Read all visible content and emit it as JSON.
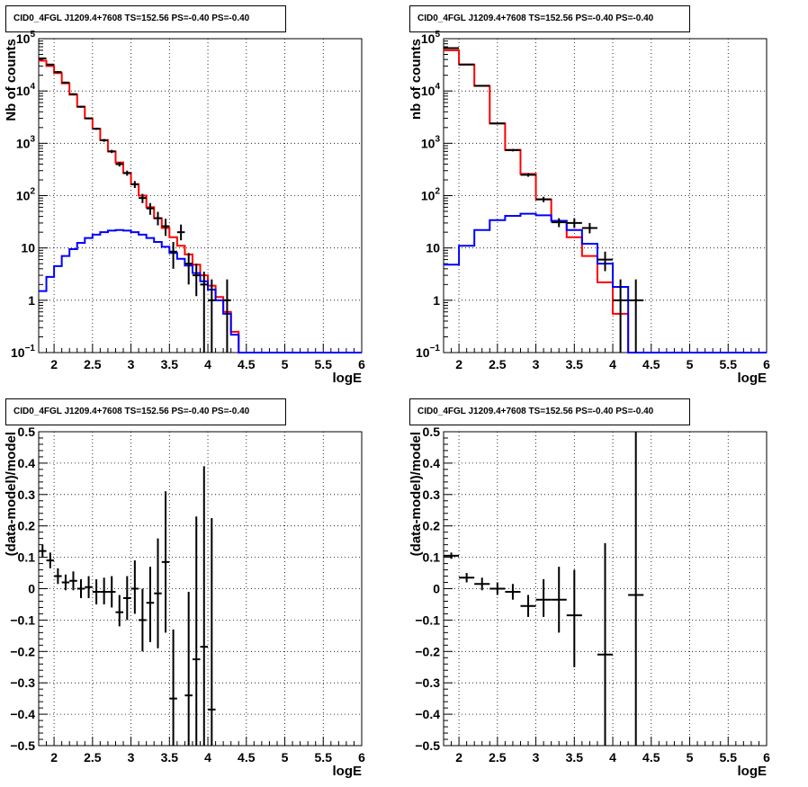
{
  "chart_data": [
    {
      "type": "histogram",
      "title": "CID0_4FGL J1209.4+7608 TS=152.56 PS=-0.40 PS=-0.40",
      "xlabel": "logE",
      "ylabel": "Nb of counts",
      "xlim": [
        1.8,
        6.0
      ],
      "ylim": [
        0.1,
        100000
      ],
      "yscale": "log",
      "xticks": [
        "2",
        "2.5",
        "3",
        "3.5",
        "4",
        "4.5",
        "5",
        "5.5",
        "6"
      ],
      "yticks": [
        {
          "v": 0.1,
          "label": "10",
          "sup": "−1"
        },
        {
          "v": 1,
          "label": "1",
          "sup": ""
        },
        {
          "v": 10,
          "label": "10",
          "sup": ""
        },
        {
          "v": 100,
          "label": "10",
          "sup": "2"
        },
        {
          "v": 1000,
          "label": "10",
          "sup": "3"
        },
        {
          "v": 10000,
          "label": "10",
          "sup": "4"
        },
        {
          "v": 100000,
          "label": "10",
          "sup": "5"
        }
      ],
      "grid": true,
      "x_edges": [
        1.8,
        1.9,
        2.0,
        2.1,
        2.2,
        2.3,
        2.4,
        2.5,
        2.6,
        2.7,
        2.8,
        2.9,
        3.0,
        3.1,
        3.2,
        3.3,
        3.4,
        3.5,
        3.6,
        3.7,
        3.8,
        3.9,
        4.0,
        4.1,
        4.2,
        4.3,
        4.4,
        4.5,
        4.6,
        4.7,
        4.8,
        4.9,
        5.0,
        5.1,
        5.2,
        5.3,
        5.4,
        5.5,
        5.6,
        5.7,
        5.8,
        5.9,
        6.0
      ],
      "series": [
        {
          "color": "#ff0000",
          "values": [
            38000,
            30000,
            22000,
            14000,
            8500,
            5000,
            3000,
            1900,
            1150,
            700,
            430,
            270,
            165,
            100,
            60,
            37,
            24,
            16,
            11,
            7.5,
            4.8,
            3.0,
            1.9,
            1.15,
            0.6,
            0.25,
            0.1,
            0.1,
            0.1,
            0.1,
            0.1,
            0.1,
            0.1,
            0.1,
            0.1,
            0.1,
            0.1,
            0.1,
            0.1,
            0.1,
            0.1,
            0.1
          ]
        },
        {
          "color": "#0000ff",
          "values": [
            1.5,
            2.8,
            4.5,
            7,
            9.5,
            12.5,
            15.5,
            18,
            20,
            21.5,
            22,
            21.5,
            20,
            18,
            15.5,
            13,
            10.5,
            8,
            6.2,
            4.6,
            3.3,
            2.3,
            1.6,
            1.0,
            0.55,
            0.22,
            0.1,
            0.1,
            0.1,
            0.1,
            0.1,
            0.1,
            0.1,
            0.1,
            0.1,
            0.1,
            0.1,
            0.1,
            0.1,
            0.1,
            0.1,
            0.1
          ]
        }
      ],
      "points": [
        {
          "x": 1.85,
          "y": 42000,
          "lo": 41000,
          "hi": 43000,
          "xerr": 0.05
        },
        {
          "x": 1.95,
          "y": 32000,
          "lo": 31000,
          "hi": 33000,
          "xerr": 0.05
        },
        {
          "x": 2.05,
          "y": 23000,
          "lo": 22000,
          "hi": 24000,
          "xerr": 0.05
        },
        {
          "x": 2.15,
          "y": 14500,
          "lo": 14000,
          "hi": 15000,
          "xerr": 0.05
        },
        {
          "x": 2.25,
          "y": 8700,
          "lo": 8400,
          "hi": 9000,
          "xerr": 0.05
        },
        {
          "x": 2.35,
          "y": 5000,
          "lo": 4800,
          "hi": 5200,
          "xerr": 0.05
        },
        {
          "x": 2.45,
          "y": 3000,
          "lo": 2880,
          "hi": 3120,
          "xerr": 0.05
        },
        {
          "x": 2.55,
          "y": 1900,
          "lo": 1810,
          "hi": 1990,
          "xerr": 0.05
        },
        {
          "x": 2.65,
          "y": 1140,
          "lo": 1070,
          "hi": 1210,
          "xerr": 0.05
        },
        {
          "x": 2.75,
          "y": 700,
          "lo": 650,
          "hi": 750,
          "xerr": 0.05
        },
        {
          "x": 2.85,
          "y": 400,
          "lo": 360,
          "hi": 440,
          "xerr": 0.05
        },
        {
          "x": 2.95,
          "y": 270,
          "lo": 240,
          "hi": 300,
          "xerr": 0.05
        },
        {
          "x": 3.05,
          "y": 165,
          "lo": 140,
          "hi": 190,
          "xerr": 0.05
        },
        {
          "x": 3.15,
          "y": 90,
          "lo": 72,
          "hi": 108,
          "xerr": 0.05
        },
        {
          "x": 3.25,
          "y": 57,
          "lo": 43,
          "hi": 72,
          "xerr": 0.05
        },
        {
          "x": 3.35,
          "y": 37,
          "lo": 27,
          "hi": 49,
          "xerr": 0.05
        },
        {
          "x": 3.45,
          "y": 26,
          "lo": 17,
          "hi": 36,
          "xerr": 0.05
        },
        {
          "x": 3.55,
          "y": 8.5,
          "lo": 4,
          "hi": 13,
          "xerr": 0.05
        },
        {
          "x": 3.65,
          "y": 20,
          "lo": 14,
          "hi": 28,
          "xerr": 0.05
        },
        {
          "x": 3.75,
          "y": 5,
          "lo": 2.0,
          "hi": 8,
          "xerr": 0.05
        },
        {
          "x": 3.85,
          "y": 3,
          "lo": 1.2,
          "hi": 5,
          "xerr": 0.05
        },
        {
          "x": 3.95,
          "y": 2,
          "lo": 0.1,
          "hi": 3.5,
          "xerr": 0.05
        },
        {
          "x": 4.05,
          "y": 1,
          "lo": 0.1,
          "hi": 2.5,
          "xerr": 0.05
        },
        {
          "x": 4.25,
          "y": 1,
          "lo": 0.1,
          "hi": 2.5,
          "xerr": 0.05
        }
      ]
    },
    {
      "type": "histogram",
      "title": "CID0_4FGL J1209.4+7608 TS=152.56 PS=-0.40 PS=-0.40",
      "xlabel": "logE",
      "ylabel": "nb of counts",
      "xlim": [
        1.8,
        6.0
      ],
      "ylim": [
        0.1,
        100000
      ],
      "yscale": "log",
      "xticks": [
        "2",
        "2.5",
        "3",
        "3.5",
        "4",
        "4.5",
        "5",
        "5.5",
        "6"
      ],
      "yticks": [
        {
          "v": 0.1,
          "label": "10",
          "sup": "−1"
        },
        {
          "v": 1,
          "label": "1",
          "sup": ""
        },
        {
          "v": 10,
          "label": "10",
          "sup": ""
        },
        {
          "v": 100,
          "label": "10",
          "sup": "2"
        },
        {
          "v": 1000,
          "label": "10",
          "sup": "3"
        },
        {
          "v": 10000,
          "label": "10",
          "sup": "4"
        },
        {
          "v": 100000,
          "label": "10",
          "sup": "5"
        }
      ],
      "grid": true,
      "x_edges": [
        1.8,
        2.0,
        2.2,
        2.4,
        2.6,
        2.8,
        3.0,
        3.2,
        3.4,
        3.6,
        3.8,
        4.0,
        4.2,
        4.4,
        4.6,
        4.8,
        5.0,
        5.2,
        5.4,
        5.6,
        5.8,
        6.0
      ],
      "series": [
        {
          "color": "#ff0000",
          "values": [
            60000,
            32000,
            12500,
            2400,
            750,
            260,
            85,
            33,
            16,
            7,
            2.2,
            0.55,
            0.1,
            0.1,
            0.1,
            0.1,
            0.1,
            0.1,
            0.1,
            0.1,
            0.1
          ]
        },
        {
          "color": "#0000ff",
          "values": [
            4.8,
            11,
            22,
            34,
            41,
            45,
            42,
            33,
            22,
            12,
            5,
            1.8,
            0.1,
            0.1,
            0.1,
            0.1,
            0.1,
            0.1,
            0.1,
            0.1,
            0.1
          ]
        }
      ],
      "points": [
        {
          "x": 1.9,
          "y": 66000,
          "lo": 65500,
          "hi": 66500,
          "xerr": 0.1
        },
        {
          "x": 2.1,
          "y": 32000,
          "lo": 31700,
          "hi": 32300,
          "xerr": 0.1
        },
        {
          "x": 2.3,
          "y": 12600,
          "lo": 12400,
          "hi": 12800,
          "xerr": 0.1
        },
        {
          "x": 2.5,
          "y": 2400,
          "lo": 2330,
          "hi": 2470,
          "xerr": 0.1
        },
        {
          "x": 2.7,
          "y": 740,
          "lo": 700,
          "hi": 780,
          "xerr": 0.1
        },
        {
          "x": 2.9,
          "y": 250,
          "lo": 230,
          "hi": 270,
          "xerr": 0.1
        },
        {
          "x": 3.1,
          "y": 85,
          "lo": 75,
          "hi": 95,
          "xerr": 0.1
        },
        {
          "x": 3.3,
          "y": 31,
          "lo": 25,
          "hi": 37,
          "xerr": 0.1
        },
        {
          "x": 3.5,
          "y": 30,
          "lo": 24,
          "hi": 37,
          "xerr": 0.1
        },
        {
          "x": 3.7,
          "y": 24,
          "lo": 19,
          "hi": 30,
          "xerr": 0.1
        },
        {
          "x": 3.9,
          "y": 6,
          "lo": 3.6,
          "hi": 8.5,
          "xerr": 0.1
        },
        {
          "x": 4.1,
          "y": 1,
          "lo": 0.1,
          "hi": 2.5,
          "xerr": 0.1
        },
        {
          "x": 4.3,
          "y": 1,
          "lo": 0.1,
          "hi": 2.5,
          "xerr": 0.1
        }
      ]
    },
    {
      "type": "scatter",
      "title": "CID0_4FGL J1209.4+7608 TS=152.56 PS=-0.40 PS=-0.40",
      "xlabel": "logE",
      "ylabel": "(data-model)/model",
      "xlim": [
        1.8,
        6.0
      ],
      "ylim": [
        -0.5,
        0.5
      ],
      "xticks": [
        "2",
        "2.5",
        "3",
        "3.5",
        "4",
        "4.5",
        "5",
        "5.5",
        "6"
      ],
      "yticks": [
        {
          "v": -0.5,
          "label": "−0.5"
        },
        {
          "v": -0.4,
          "label": "−0.4"
        },
        {
          "v": -0.3,
          "label": "−0.3"
        },
        {
          "v": -0.2,
          "label": "−0.2"
        },
        {
          "v": -0.1,
          "label": "−0.1"
        },
        {
          "v": 0,
          "label": "0"
        },
        {
          "v": 0.1,
          "label": "0.1"
        },
        {
          "v": 0.2,
          "label": "0.2"
        },
        {
          "v": 0.3,
          "label": "0.3"
        },
        {
          "v": 0.4,
          "label": "0.4"
        },
        {
          "v": 0.5,
          "label": "0.5"
        }
      ],
      "grid": true,
      "points": [
        {
          "x": 1.85,
          "y": 0.12,
          "lo": 0.1,
          "hi": 0.14,
          "xerr": 0.05
        },
        {
          "x": 1.95,
          "y": 0.09,
          "lo": 0.065,
          "hi": 0.115,
          "xerr": 0.05
        },
        {
          "x": 2.05,
          "y": 0.04,
          "lo": 0.015,
          "hi": 0.065,
          "xerr": 0.05
        },
        {
          "x": 2.15,
          "y": 0.02,
          "lo": -0.005,
          "hi": 0.045,
          "xerr": 0.05
        },
        {
          "x": 2.25,
          "y": 0.025,
          "lo": -0.005,
          "hi": 0.055,
          "xerr": 0.05
        },
        {
          "x": 2.35,
          "y": 0.0,
          "lo": -0.03,
          "hi": 0.03,
          "xerr": 0.05
        },
        {
          "x": 2.45,
          "y": 0.005,
          "lo": -0.03,
          "hi": 0.04,
          "xerr": 0.05
        },
        {
          "x": 2.55,
          "y": -0.01,
          "lo": -0.05,
          "hi": 0.03,
          "xerr": 0.05
        },
        {
          "x": 2.65,
          "y": -0.01,
          "lo": -0.05,
          "hi": 0.035,
          "xerr": 0.05
        },
        {
          "x": 2.75,
          "y": -0.01,
          "lo": -0.06,
          "hi": 0.04,
          "xerr": 0.05
        },
        {
          "x": 2.85,
          "y": -0.075,
          "lo": -0.12,
          "hi": -0.02,
          "xerr": 0.05
        },
        {
          "x": 2.95,
          "y": -0.03,
          "lo": -0.1,
          "hi": 0.04,
          "xerr": 0.05
        },
        {
          "x": 3.05,
          "y": 0.0,
          "lo": -0.08,
          "hi": 0.09,
          "xerr": 0.05
        },
        {
          "x": 3.15,
          "y": -0.1,
          "lo": -0.2,
          "hi": 0.0,
          "xerr": 0.05
        },
        {
          "x": 3.25,
          "y": -0.045,
          "lo": -0.17,
          "hi": 0.07,
          "xerr": 0.05
        },
        {
          "x": 3.35,
          "y": -0.015,
          "lo": -0.19,
          "hi": 0.16,
          "xerr": 0.05
        },
        {
          "x": 3.45,
          "y": 0.085,
          "lo": -0.14,
          "hi": 0.31,
          "xerr": 0.05
        },
        {
          "x": 3.55,
          "y": -0.35,
          "lo": -0.5,
          "hi": -0.13,
          "xerr": 0.05
        },
        {
          "x": 3.75,
          "y": -0.34,
          "lo": -0.5,
          "hi": -0.01,
          "xerr": 0.05
        },
        {
          "x": 3.85,
          "y": -0.225,
          "lo": -0.5,
          "hi": 0.23,
          "xerr": 0.05
        },
        {
          "x": 3.95,
          "y": -0.185,
          "lo": -0.5,
          "hi": 0.39,
          "xerr": 0.05
        },
        {
          "x": 4.05,
          "y": -0.385,
          "lo": -0.5,
          "hi": 0.225,
          "xerr": 0.05
        }
      ]
    },
    {
      "type": "scatter",
      "title": "CID0_4FGL J1209.4+7608 TS=152.56 PS=-0.40 PS=-0.40",
      "xlabel": "logE",
      "ylabel": "(data-model)/model",
      "xlim": [
        1.8,
        6.0
      ],
      "ylim": [
        -0.5,
        0.5
      ],
      "xticks": [
        "2",
        "2.5",
        "3",
        "3.5",
        "4",
        "4.5",
        "5",
        "5.5",
        "6"
      ],
      "yticks": [
        {
          "v": -0.5,
          "label": "−0.5"
        },
        {
          "v": -0.4,
          "label": "−0.4"
        },
        {
          "v": -0.3,
          "label": "−0.3"
        },
        {
          "v": -0.2,
          "label": "−0.2"
        },
        {
          "v": -0.1,
          "label": "−0.1"
        },
        {
          "v": 0,
          "label": "0"
        },
        {
          "v": 0.1,
          "label": "0.1"
        },
        {
          "v": 0.2,
          "label": "0.2"
        },
        {
          "v": 0.3,
          "label": "0.3"
        },
        {
          "v": 0.4,
          "label": "0.4"
        },
        {
          "v": 0.5,
          "label": "0.5"
        }
      ],
      "grid": true,
      "points": [
        {
          "x": 1.9,
          "y": 0.105,
          "lo": 0.095,
          "hi": 0.115,
          "xerr": 0.1
        },
        {
          "x": 2.1,
          "y": 0.035,
          "lo": 0.02,
          "hi": 0.05,
          "xerr": 0.1
        },
        {
          "x": 2.3,
          "y": 0.015,
          "lo": -0.005,
          "hi": 0.035,
          "xerr": 0.1
        },
        {
          "x": 2.5,
          "y": 0.0,
          "lo": -0.02,
          "hi": 0.02,
          "xerr": 0.1
        },
        {
          "x": 2.7,
          "y": -0.01,
          "lo": -0.035,
          "hi": 0.015,
          "xerr": 0.1
        },
        {
          "x": 2.9,
          "y": -0.055,
          "lo": -0.09,
          "hi": -0.02,
          "xerr": 0.1
        },
        {
          "x": 3.1,
          "y": -0.035,
          "lo": -0.09,
          "hi": 0.03,
          "xerr": 0.1
        },
        {
          "x": 3.3,
          "y": -0.035,
          "lo": -0.14,
          "hi": 0.07,
          "xerr": 0.1
        },
        {
          "x": 3.5,
          "y": -0.085,
          "lo": -0.25,
          "hi": 0.06,
          "xerr": 0.1
        },
        {
          "x": 3.9,
          "y": -0.21,
          "lo": -0.5,
          "hi": 0.145,
          "xerr": 0.1
        },
        {
          "x": 4.3,
          "y": -0.02,
          "lo": -0.5,
          "hi": 0.5,
          "xerr": 0.1
        }
      ]
    }
  ]
}
